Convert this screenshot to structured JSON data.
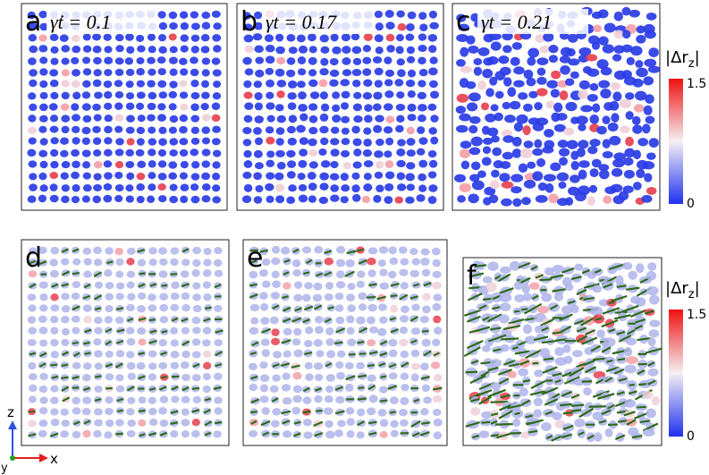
{
  "panels": [
    {
      "label": "a",
      "annotation": "γ̇t = 0.1"
    },
    {
      "label": "b",
      "annotation": "γt = 0.17"
    },
    {
      "label": "c",
      "annotation": "γt = 0.21"
    },
    {
      "label": "d"
    },
    {
      "label": "e"
    },
    {
      "label": "f"
    }
  ],
  "colorbars": [
    {
      "title_main": "|Δr",
      "title_sub": "z",
      "title_end": "|",
      "ticks": [
        "1.5",
        "0"
      ]
    },
    {
      "title_main": "|Δr",
      "title_sub": "z",
      "title_end": "|",
      "ticks": [
        "1.5",
        "0"
      ]
    }
  ],
  "axes_triad": {
    "z": "z",
    "x": "x",
    "y": "y"
  }
}
